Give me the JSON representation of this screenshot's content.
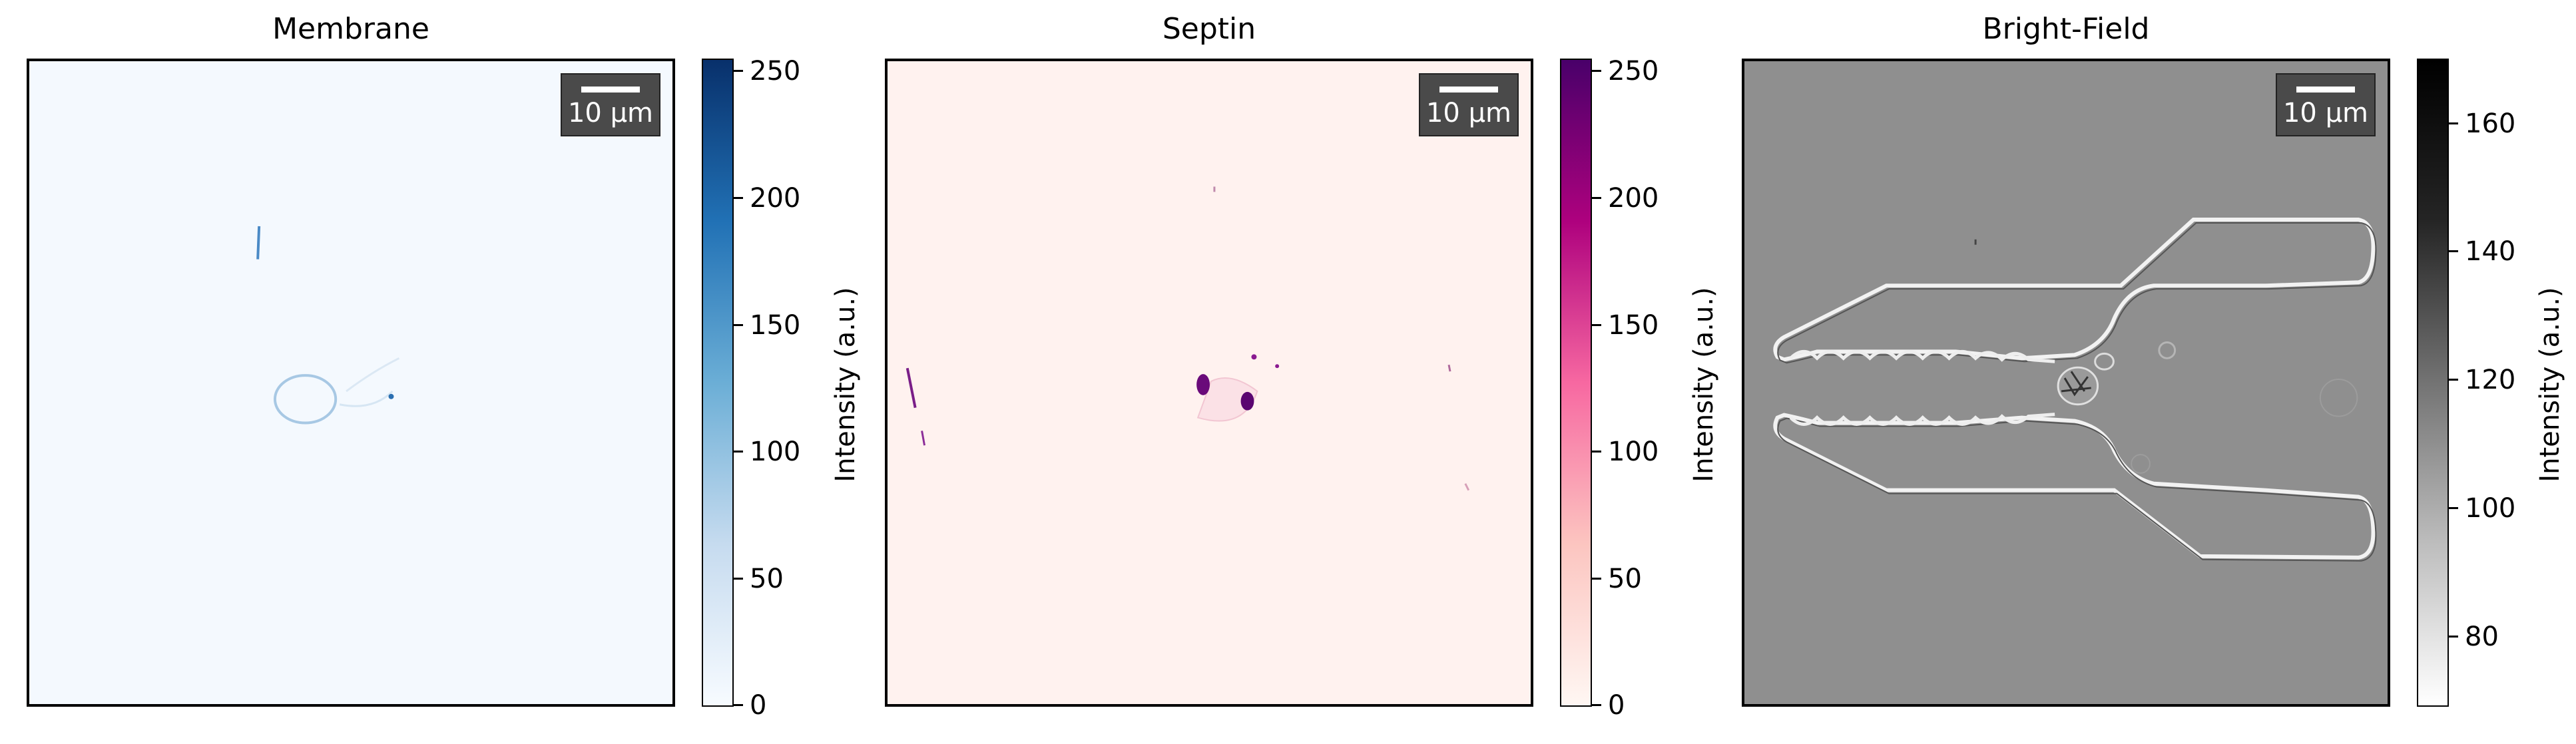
{
  "panels": [
    {
      "title": "Membrane",
      "scale_bar_label": "10 µm",
      "colorbar": {
        "label": "Intensity (a.u.)",
        "ticks": [
          "0",
          "50",
          "100",
          "150",
          "200",
          "250"
        ],
        "range": [
          0,
          255
        ],
        "colormap": "Blues",
        "color_low": "#f7fbff",
        "color_high": "#08306b"
      }
    },
    {
      "title": "Septin",
      "scale_bar_label": "10 µm",
      "colorbar": {
        "label": "Intensity (a.u.)",
        "ticks": [
          "0",
          "50",
          "100",
          "150",
          "200",
          "250"
        ],
        "range": [
          0,
          255
        ],
        "colormap": "RdPu",
        "color_low": "#fff7f3",
        "color_high": "#49006a"
      }
    },
    {
      "title": "Bright-Field",
      "scale_bar_label": "10 µm",
      "colorbar": {
        "label": "Intensity (a.u.)",
        "ticks": [
          "80",
          "100",
          "120",
          "140",
          "160"
        ],
        "range": [
          70,
          171
        ],
        "colormap": "Greys",
        "color_low": "#ffffff",
        "color_high": "#000000"
      }
    }
  ]
}
